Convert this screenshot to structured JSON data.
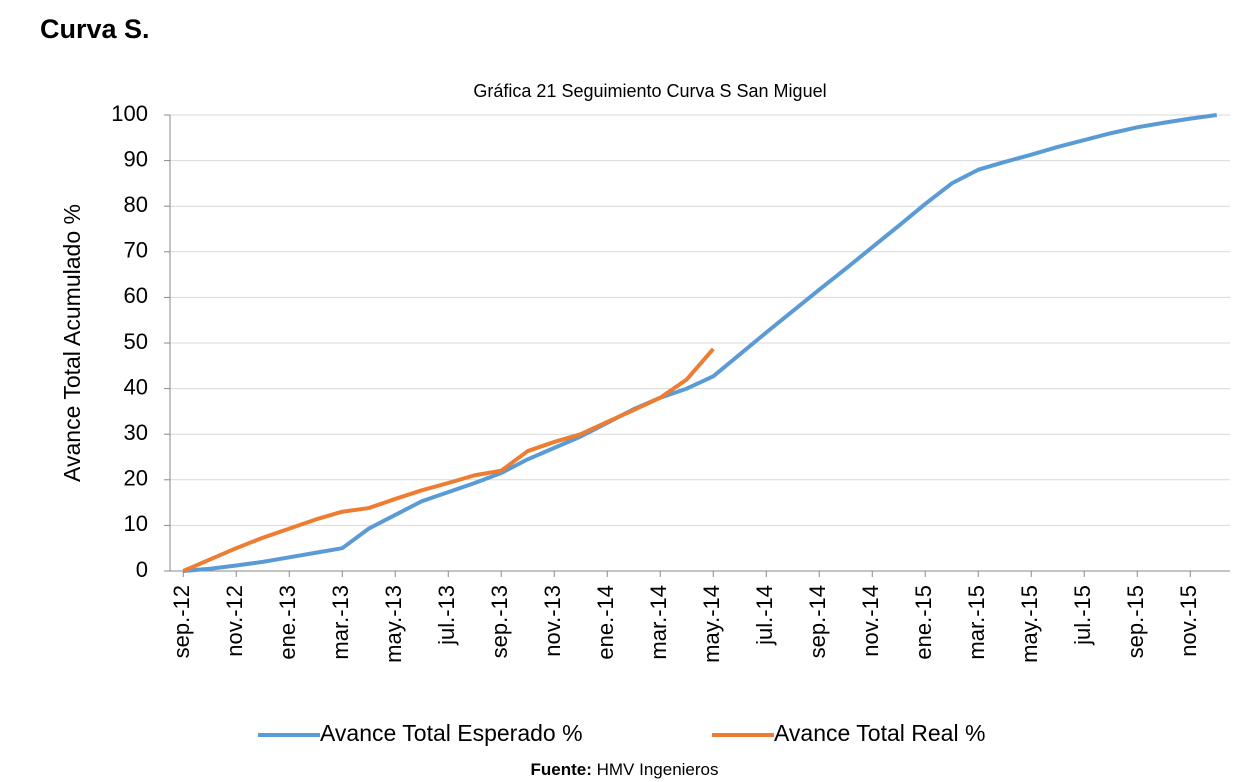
{
  "heading": "Curva S.",
  "chart_data": {
    "type": "line",
    "title": "Gráfica 21 Seguimiento Curva S San Miguel",
    "y_label": "Avance Total Acumulado %",
    "categories": [
      "sep.-12",
      null,
      "nov.-12",
      null,
      "ene.-13",
      null,
      "mar.-13",
      null,
      "may.-13",
      null,
      "jul.-13",
      null,
      "sep.-13",
      null,
      "nov.-13",
      null,
      "ene.-14",
      null,
      "mar.-14",
      null,
      "may.-14",
      null,
      "jul.-14",
      null,
      "sep.-14",
      null,
      "nov.-14",
      null,
      "ene.-15",
      null,
      "mar.-15",
      null,
      "may.-15",
      null,
      "jul.-15",
      null,
      "sep.-15",
      null,
      "nov.-15",
      null
    ],
    "series": [
      {
        "name": "Avance Total Esperado %",
        "color": "#5b9bd5",
        "values": [
          0,
          0.5,
          1.2,
          2,
          3,
          4,
          5,
          9.3,
          12.3,
          15.3,
          17.3,
          19.3,
          21.5,
          24.5,
          27,
          29.5,
          32.5,
          35.5,
          38,
          40,
          42.7,
          47.5,
          52.3,
          57,
          61.7,
          66.3,
          71,
          75.7,
          80.5,
          85,
          88,
          89.7,
          91.3,
          93,
          94.5,
          96,
          97.3,
          98.3,
          99.2,
          100
        ]
      },
      {
        "name": "Avance Total Real %",
        "color": "#ed7d31",
        "values": [
          0,
          2.5,
          5,
          7.3,
          9.3,
          11.3,
          13,
          13.8,
          15.8,
          17.7,
          19.3,
          21,
          22,
          26.3,
          28.3,
          30,
          32.7,
          35.3,
          38,
          42,
          48.7,
          null,
          null,
          null,
          null,
          null,
          null,
          null,
          null,
          null,
          null,
          null,
          null,
          null,
          null,
          null,
          null,
          null,
          null,
          null
        ]
      }
    ],
    "ylim": [
      0,
      100
    ],
    "yticks": [
      0,
      10,
      20,
      30,
      40,
      50,
      60,
      70,
      80,
      90,
      100
    ],
    "grid": true
  },
  "source": {
    "label": "Fuente:",
    "text": "HMV Ingenieros"
  }
}
